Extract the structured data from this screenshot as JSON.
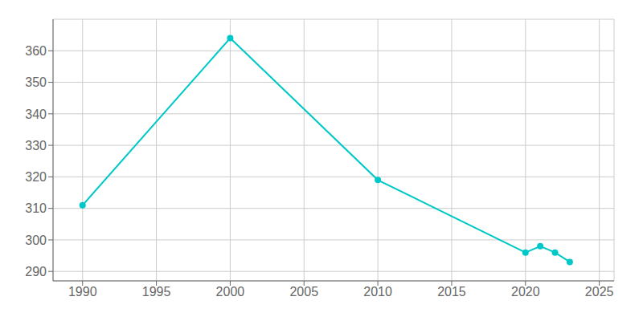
{
  "chart_data": {
    "type": "line",
    "x": [
      1990,
      2000,
      2010,
      2020,
      2021,
      2022,
      2023
    ],
    "values": [
      311,
      364,
      319,
      296,
      298,
      296,
      293
    ],
    "color": "#00c8c8",
    "marker": "circle",
    "xlim": [
      1988,
      2026
    ],
    "ylim": [
      287,
      370
    ],
    "xticks": [
      1990,
      1995,
      2000,
      2005,
      2010,
      2015,
      2020,
      2025
    ],
    "yticks": [
      290,
      300,
      310,
      320,
      330,
      340,
      350,
      360
    ],
    "grid": true
  }
}
